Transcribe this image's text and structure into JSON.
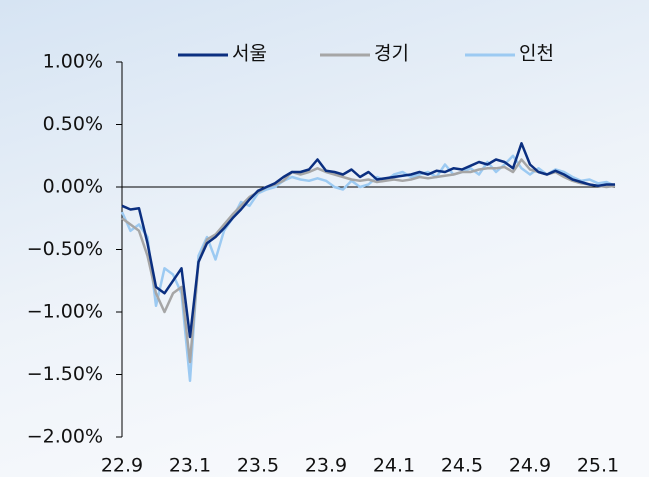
{
  "chart_data": {
    "type": "line",
    "categories": [
      "22.9",
      null,
      null,
      null,
      null,
      null,
      null,
      null,
      "23.1",
      null,
      null,
      null,
      null,
      null,
      null,
      null,
      "23.5",
      null,
      null,
      null,
      null,
      null,
      null,
      null,
      "23.9",
      null,
      null,
      null,
      null,
      null,
      null,
      null,
      "24.1",
      null,
      null,
      null,
      null,
      null,
      null,
      null,
      "24.5",
      null,
      null,
      null,
      null,
      null,
      null,
      null,
      "24.9",
      null,
      null,
      null,
      null,
      null,
      null,
      null,
      "25.1",
      null,
      null
    ],
    "series": [
      {
        "name": "서울",
        "color": "#0b2f80",
        "values": [
          -0.15,
          -0.18,
          -0.17,
          -0.45,
          -0.8,
          -0.85,
          -0.75,
          -0.65,
          -1.2,
          -0.6,
          -0.45,
          -0.4,
          -0.33,
          -0.25,
          -0.18,
          -0.1,
          -0.03,
          0.0,
          0.03,
          0.08,
          0.12,
          0.12,
          0.14,
          0.22,
          0.13,
          0.12,
          0.1,
          0.14,
          0.08,
          0.12,
          0.06,
          0.07,
          0.08,
          0.09,
          0.1,
          0.12,
          0.1,
          0.13,
          0.12,
          0.15,
          0.14,
          0.17,
          0.2,
          0.18,
          0.22,
          0.2,
          0.15,
          0.35,
          0.18,
          0.12,
          0.1,
          0.13,
          0.1,
          0.06,
          0.04,
          0.02,
          0.01,
          0.02,
          0.02
        ]
      },
      {
        "name": "경기",
        "color": "#a6a6a6",
        "values": [
          -0.25,
          -0.3,
          -0.35,
          -0.55,
          -0.85,
          -1.0,
          -0.85,
          -0.8,
          -1.4,
          -0.6,
          -0.42,
          -0.38,
          -0.3,
          -0.22,
          -0.15,
          -0.08,
          -0.04,
          0.0,
          0.02,
          0.05,
          0.12,
          0.1,
          0.12,
          0.15,
          0.12,
          0.1,
          0.08,
          0.06,
          0.05,
          0.06,
          0.04,
          0.05,
          0.06,
          0.05,
          0.06,
          0.08,
          0.07,
          0.08,
          0.09,
          0.1,
          0.12,
          0.12,
          0.14,
          0.15,
          0.15,
          0.16,
          0.12,
          0.22,
          0.14,
          0.12,
          0.1,
          0.12,
          0.08,
          0.05,
          0.03,
          0.02,
          0.01,
          0.0,
          0.01
        ]
      },
      {
        "name": "인천",
        "color": "#9ccaf2",
        "values": [
          -0.2,
          -0.35,
          -0.3,
          -0.4,
          -0.95,
          -0.65,
          -0.7,
          -0.85,
          -1.55,
          -0.55,
          -0.4,
          -0.58,
          -0.35,
          -0.25,
          -0.12,
          -0.15,
          -0.05,
          -0.02,
          0.0,
          0.05,
          0.08,
          0.06,
          0.05,
          0.07,
          0.05,
          0.0,
          -0.02,
          0.05,
          0.0,
          0.02,
          0.08,
          0.05,
          0.1,
          0.12,
          0.08,
          0.1,
          0.12,
          0.08,
          0.18,
          0.1,
          0.12,
          0.15,
          0.1,
          0.2,
          0.12,
          0.18,
          0.25,
          0.15,
          0.1,
          0.15,
          0.1,
          0.14,
          0.12,
          0.08,
          0.05,
          0.06,
          0.03,
          0.04,
          0.01
        ]
      }
    ],
    "ylim": [
      -2,
      1
    ],
    "yticks": [
      {
        "value": -2,
        "label": "−2.00%"
      },
      {
        "value": -1.5,
        "label": "−1.50%"
      },
      {
        "value": -1,
        "label": "−1.00%"
      },
      {
        "value": -0.5,
        "label": "−0.50%"
      },
      {
        "value": 0,
        "label": "0.00%"
      },
      {
        "value": 0.5,
        "label": "0.50%"
      },
      {
        "value": 1,
        "label": "1.00%"
      }
    ]
  }
}
